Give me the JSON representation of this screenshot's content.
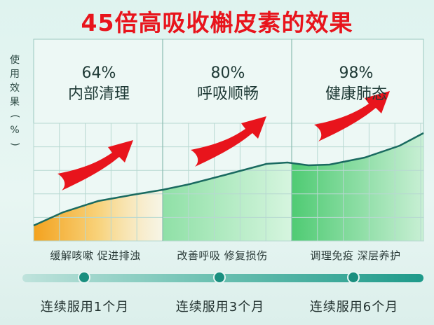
{
  "title": "45倍高吸收槲皮素的效果",
  "chart_data": {
    "type": "area",
    "ylabel": "使用效果(%)",
    "panels": [
      {
        "label": "内部清理",
        "value": "64%",
        "caption": "缓解咳嗽 促进排浊",
        "duration": "连续服用1个月",
        "color": "#f3a21e"
      },
      {
        "label": "呼吸顺畅",
        "value": "80%",
        "caption": "改善呼吸 修复损伤",
        "duration": "连续服用3个月",
        "color": "#9ee2b0"
      },
      {
        "label": "健康肺态",
        "value": "98%",
        "caption": "调理免疫 深层养护",
        "duration": "连续服用6个月",
        "color": "#5fd07e"
      }
    ],
    "grid": true
  },
  "colors": {
    "title": "#e8141c",
    "line": "#1a6a60",
    "arrow": "#e8141c",
    "timeline_dot": "#1a8f7f"
  }
}
